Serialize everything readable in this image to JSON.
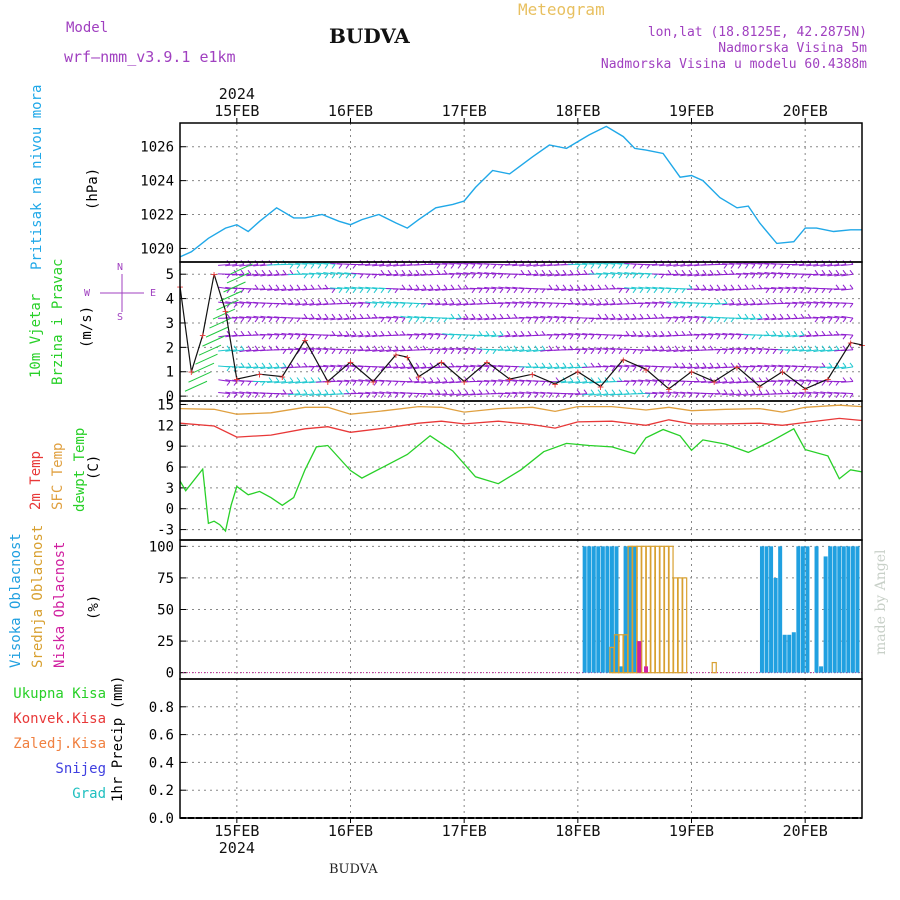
{
  "header": {
    "model_label": "Model",
    "model_name": "wrf—nmm_v3.9.1  e1km",
    "title": "BUDVA",
    "meteogram": "Meteogram",
    "lonlat": "lon,lat (18.8125E, 42.2875N)",
    "altitude": "Nadmorska Visina 5m",
    "model_altitude": "Nadmorska Visina u modelu 60.4388m",
    "year": "2024",
    "bottom_label": "BUDVA",
    "credit": "made by Angel"
  },
  "colors": {
    "pressure": "#20a8e8",
    "temp2m": "#e83838",
    "sfc_temp": "#e0a040",
    "dewpoint": "#28d028",
    "cloud_high": "#20a0e0",
    "cloud_mid": "#d8a030",
    "cloud_low": "#d020a0",
    "wind_dir": "#9020d0",
    "wind_cyan": "#20c8d0"
  },
  "panels": {
    "pressure": {
      "label": "Pritisak na nivou mora",
      "unit": "(hPa)"
    },
    "wind": {
      "label1": "10m Vjetar",
      "label2": "Brzina i Pravac",
      "unit": "(m/s)",
      "compass_n": "N",
      "compass_s": "S",
      "compass_w": "W",
      "compass_e": "E"
    },
    "temp": {
      "label1": "2m Temp",
      "label2": "SFC Temp",
      "label3": "dewpt Temp",
      "unit": "(C)"
    },
    "cloud": {
      "label1": "Visoka Oblacnost",
      "label2": "Srednja Oblacnost",
      "label3": "Niska Oblacnost",
      "unit": "(%)"
    },
    "precip": {
      "unit": "1hr Precip (mm)",
      "legend": [
        "Ukupna Kisa",
        "Konvek.Kisa",
        "Zaledj.Kisa",
        "Snijeg",
        "Grad"
      ]
    }
  },
  "chart_data": [
    {
      "type": "line",
      "title": "",
      "ylabel": "Pritisak na nivou mora (hPa)",
      "x_categories": [
        "15FEB",
        "16FEB",
        "17FEB",
        "18FEB",
        "19FEB",
        "20FEB"
      ],
      "ylim": [
        1019.2,
        1027.4
      ],
      "yticks": [
        1020,
        1022,
        1024,
        1026
      ],
      "series": [
        {
          "name": "Pritisak na nivou mora",
          "x": [
            14.5,
            14.6,
            14.75,
            14.9,
            15.0,
            15.1,
            15.2,
            15.35,
            15.5,
            15.6,
            15.75,
            15.9,
            16.0,
            16.1,
            16.25,
            16.4,
            16.5,
            16.6,
            16.75,
            16.9,
            17.0,
            17.1,
            17.25,
            17.4,
            17.5,
            17.6,
            17.75,
            17.9,
            18.0,
            18.1,
            18.25,
            18.4,
            18.5,
            18.6,
            18.75,
            18.9,
            19.0,
            19.1,
            19.25,
            19.4,
            19.5,
            19.6,
            19.75,
            19.9,
            20.0,
            20.1,
            20.25,
            20.4,
            20.5
          ],
          "y": [
            1019.5,
            1019.8,
            1020.6,
            1021.2,
            1021.4,
            1021.0,
            1021.6,
            1022.4,
            1021.8,
            1021.8,
            1022.0,
            1021.6,
            1021.4,
            1021.7,
            1022.0,
            1021.5,
            1021.2,
            1021.7,
            1022.4,
            1022.6,
            1022.8,
            1023.6,
            1024.6,
            1024.4,
            1024.9,
            1025.4,
            1026.1,
            1025.9,
            1026.3,
            1026.7,
            1027.2,
            1026.6,
            1025.9,
            1025.8,
            1025.6,
            1024.2,
            1024.3,
            1024.0,
            1023.0,
            1022.4,
            1022.5,
            1021.5,
            1020.3,
            1020.4,
            1021.2,
            1021.2,
            1021.0,
            1021.1,
            1021.1
          ]
        }
      ]
    },
    {
      "type": "line",
      "title": "",
      "ylabel": "10m Vjetar Brzina i Pravac (m/s)",
      "ylim": [
        -0.2,
        5.5
      ],
      "yticks": [
        0,
        1,
        2,
        3,
        4,
        5
      ],
      "series": [
        {
          "name": "10m Vjetar",
          "x": [
            14.5,
            14.6,
            14.7,
            14.8,
            14.9,
            15.0,
            15.2,
            15.4,
            15.6,
            15.8,
            16.0,
            16.2,
            16.4,
            16.5,
            16.6,
            16.8,
            17.0,
            17.2,
            17.4,
            17.6,
            17.8,
            18.0,
            18.2,
            18.4,
            18.6,
            18.8,
            19.0,
            19.2,
            19.4,
            19.6,
            19.8,
            20.0,
            20.2,
            20.4,
            20.5
          ],
          "y": [
            4.5,
            1.0,
            2.5,
            5.0,
            3.5,
            0.7,
            0.9,
            0.8,
            2.3,
            0.6,
            1.4,
            0.6,
            1.7,
            1.6,
            0.8,
            1.4,
            0.6,
            1.4,
            0.7,
            0.9,
            0.5,
            1.0,
            0.4,
            1.5,
            1.1,
            0.3,
            1.0,
            0.6,
            1.2,
            0.4,
            1.0,
            0.3,
            0.7,
            2.2,
            2.1
          ]
        }
      ]
    },
    {
      "type": "line",
      "title": "",
      "ylabel": "Temp (C)",
      "ylim": [
        -4.5,
        15.5
      ],
      "yticks": [
        -3,
        0,
        3,
        6,
        9,
        12,
        15
      ],
      "series": [
        {
          "name": "2m Temp",
          "x": [
            14.5,
            14.8,
            15.0,
            15.3,
            15.6,
            15.8,
            16.0,
            16.3,
            16.6,
            16.8,
            17.0,
            17.3,
            17.6,
            17.8,
            18.0,
            18.3,
            18.6,
            18.8,
            19.0,
            19.3,
            19.6,
            19.8,
            20.0,
            20.3,
            20.5
          ],
          "y": [
            12.3,
            11.9,
            10.3,
            10.6,
            11.5,
            11.8,
            11.0,
            11.6,
            12.3,
            12.6,
            12.2,
            12.6,
            12.1,
            11.6,
            12.5,
            12.6,
            12.0,
            12.8,
            12.2,
            12.2,
            12.3,
            12.0,
            12.4,
            13.0,
            12.7
          ]
        },
        {
          "name": "SFC Temp",
          "x": [
            14.5,
            14.8,
            15.0,
            15.3,
            15.6,
            15.8,
            16.0,
            16.3,
            16.6,
            16.8,
            17.0,
            17.3,
            17.6,
            17.8,
            18.0,
            18.3,
            18.6,
            18.8,
            19.0,
            19.3,
            19.6,
            19.8,
            20.0,
            20.3,
            20.5
          ],
          "y": [
            14.4,
            14.3,
            13.6,
            13.8,
            14.6,
            14.6,
            13.6,
            14.1,
            14.7,
            14.6,
            13.9,
            14.4,
            14.6,
            14.0,
            14.7,
            14.7,
            14.2,
            14.6,
            14.1,
            14.3,
            14.4,
            13.9,
            14.6,
            14.9,
            14.7
          ]
        },
        {
          "name": "dewpt Temp",
          "x": [
            14.5,
            14.55,
            14.7,
            14.75,
            14.8,
            14.85,
            14.9,
            14.95,
            15.0,
            15.1,
            15.2,
            15.3,
            15.4,
            15.5,
            15.6,
            15.7,
            15.8,
            16.0,
            16.1,
            16.3,
            16.5,
            16.7,
            16.9,
            17.1,
            17.3,
            17.5,
            17.7,
            17.9,
            18.1,
            18.3,
            18.5,
            18.6,
            18.75,
            18.9,
            19.0,
            19.1,
            19.3,
            19.5,
            19.7,
            19.9,
            20.0,
            20.2,
            20.3,
            20.4,
            20.5
          ],
          "y": [
            4.0,
            2.6,
            5.7,
            -2.1,
            -1.8,
            -2.3,
            -3.2,
            0.5,
            3.2,
            2.0,
            2.5,
            1.6,
            0.5,
            1.6,
            5.6,
            8.9,
            9.1,
            5.5,
            4.4,
            6.1,
            7.8,
            10.5,
            8.3,
            4.6,
            3.6,
            5.6,
            8.2,
            9.4,
            9.1,
            8.9,
            7.9,
            10.2,
            11.4,
            10.5,
            8.4,
            9.9,
            9.3,
            8.1,
            9.7,
            11.5,
            8.5,
            7.6,
            4.3,
            5.6,
            5.3
          ]
        }
      ]
    },
    {
      "type": "bar",
      "title": "",
      "ylabel": "Oblacnost (%)",
      "ylim": [
        -5,
        105
      ],
      "yticks": [
        0,
        25,
        50,
        75,
        100
      ],
      "series": [
        {
          "name": "Visoka Oblacnost",
          "x": [
            18.06,
            18.1,
            18.14,
            18.18,
            18.22,
            18.26,
            18.3,
            18.34,
            18.38,
            18.42,
            18.46,
            18.5,
            19.62,
            19.66,
            19.7,
            19.74,
            19.78,
            19.82,
            19.86,
            19.9,
            19.94,
            19.98,
            20.02,
            20.1,
            20.14,
            20.18,
            20.22,
            20.26,
            20.3,
            20.34,
            20.38,
            20.42,
            20.46
          ],
          "y": [
            100,
            100,
            100,
            100,
            100,
            100,
            100,
            100,
            5,
            100,
            100,
            100,
            100,
            100,
            100,
            75,
            100,
            30,
            30,
            32,
            100,
            100,
            100,
            100,
            5,
            92,
            100,
            100,
            100,
            100,
            100,
            100,
            100
          ]
        },
        {
          "name": "Srednja Oblacnost",
          "x": [
            18.3,
            18.34,
            18.38,
            18.42,
            18.46,
            18.5,
            18.54,
            18.58,
            18.62,
            18.66,
            18.7,
            18.74,
            18.78,
            18.82,
            18.86,
            18.9,
            18.94,
            19.2
          ],
          "y": [
            20,
            30,
            30,
            30,
            100,
            100,
            100,
            100,
            100,
            100,
            100,
            100,
            100,
            100,
            75,
            75,
            75,
            8
          ]
        },
        {
          "name": "Niska Oblacnost",
          "x": [
            18.54,
            18.6
          ],
          "y": [
            25,
            5
          ]
        }
      ]
    },
    {
      "type": "bar",
      "title": "",
      "ylabel": "1hr Precip (mm)",
      "ylim": [
        0,
        1.0
      ],
      "yticks": [
        0,
        0.2,
        0.4,
        0.6,
        0.8
      ],
      "series": [
        {
          "name": "Ukupna Kisa",
          "x": [],
          "y": []
        }
      ]
    }
  ]
}
